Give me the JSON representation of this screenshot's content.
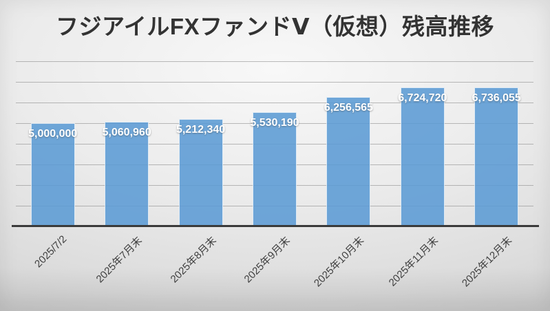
{
  "chart_data": {
    "type": "bar",
    "title": "フジアイルFXファンドⅤ（仮想）残高推移",
    "categories": [
      "2025/7/2",
      "2025年7月末",
      "2025年8月末",
      "2025年9月末",
      "2025年10月末",
      "2025年11月末",
      "2025年12月末"
    ],
    "values": [
      5000000,
      5060960,
      5212340,
      5530190,
      6256565,
      6724720,
      6736055
    ],
    "value_labels": [
      "5,000,000",
      "5,060,960",
      "5,212,340",
      "5,530,190",
      "6,256,565",
      "6,724,720",
      "6,736,055"
    ],
    "xlabel": "",
    "ylabel": "",
    "ylim": [
      0,
      8000000
    ],
    "gridline_interval": 1000000,
    "grid": true,
    "legend": false,
    "y_axis_labels_visible": false,
    "bar_color": "#5B9BD5",
    "bar_opacity": 0.87,
    "bar_border_color": "rgba(245,249,253,0.85)",
    "value_label_color": "#FFFFFF",
    "gridline_color": "rgba(110,110,110,0.45)",
    "axis_line_color": "#3a3a3a",
    "category_label_color": "#404040",
    "title_color": "#333333"
  }
}
